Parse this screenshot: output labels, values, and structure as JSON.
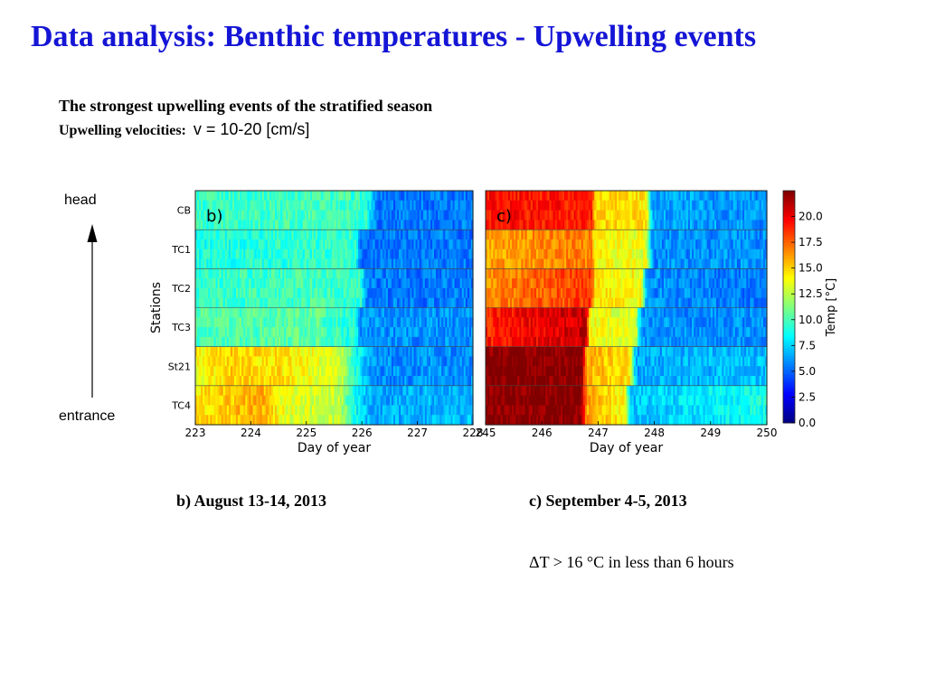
{
  "slide": {
    "title": "Data analysis: Benthic temperatures - Upwelling events",
    "subtitle": "The strongest upwelling events of the stratified season",
    "velocity_label": "Upwelling velocities:",
    "velocity_value": "v = 10-20  [cm/s]",
    "head_label": "head",
    "entrance_label": "entrance",
    "caption_b": "b) August 13-14, 2013",
    "caption_c": "c) September 4-5, 2013",
    "note": "ΔT > 16 °C in less than 6 hours"
  },
  "chart_data": [
    {
      "type": "heatmap",
      "panel_label": "b)",
      "xlabel": "Day of year",
      "ylabel": "Stations",
      "xlim": [
        222.8,
        228
      ],
      "xticks": [
        "223",
        "224",
        "225",
        "226",
        "227",
        "228"
      ],
      "stations": [
        "CB",
        "TC1",
        "TC2",
        "TC3",
        "St21",
        "TC4"
      ],
      "series": [
        {
          "name": "CB",
          "values": [
            [
              222.8,
              9.5
            ],
            [
              224.0,
              9.8
            ],
            [
              225.5,
              10.0
            ],
            [
              226.0,
              9.5
            ],
            [
              226.2,
              5.5
            ],
            [
              228,
              5.5
            ]
          ]
        },
        {
          "name": "TC1",
          "values": [
            [
              222.8,
              9.0
            ],
            [
              225.0,
              9.5
            ],
            [
              225.8,
              9.5
            ],
            [
              225.9,
              5.5
            ],
            [
              228,
              5.5
            ]
          ]
        },
        {
          "name": "TC2",
          "values": [
            [
              222.8,
              9.5
            ],
            [
              225.0,
              10.0
            ],
            [
              225.9,
              9.5
            ],
            [
              226.0,
              5.5
            ],
            [
              228,
              5.5
            ]
          ]
        },
        {
          "name": "TC3",
          "values": [
            [
              222.8,
              10.0
            ],
            [
              225.0,
              10.5
            ],
            [
              225.8,
              9.0
            ],
            [
              225.9,
              6.0
            ],
            [
              228,
              6.0
            ]
          ]
        },
        {
          "name": "St21",
          "values": [
            [
              222.8,
              14.0
            ],
            [
              223.5,
              15.0
            ],
            [
              224.5,
              14.5
            ],
            [
              225.5,
              13.0
            ],
            [
              225.9,
              8.0
            ],
            [
              226.1,
              6.0
            ],
            [
              228,
              6.0
            ]
          ]
        },
        {
          "name": "TC4",
          "values": [
            [
              222.8,
              14.5
            ],
            [
              224.0,
              16.0
            ],
            [
              224.5,
              13.5
            ],
            [
              225.5,
              12.5
            ],
            [
              225.9,
              7.5
            ],
            [
              226.2,
              6.5
            ],
            [
              228,
              7.0
            ]
          ]
        }
      ]
    },
    {
      "type": "heatmap",
      "panel_label": "c)",
      "xlabel": "Day of year",
      "xlim": [
        244.85,
        250
      ],
      "xticks": [
        "245",
        "246",
        "247",
        "248",
        "249",
        "250"
      ],
      "stations": [
        "CB",
        "TC1",
        "TC2",
        "TC3",
        "St21",
        "TC4"
      ],
      "series": [
        {
          "name": "CB",
          "values": [
            [
              244.85,
              19.5
            ],
            [
              246.8,
              19.0
            ],
            [
              246.85,
              15.0
            ],
            [
              247.8,
              14.5
            ],
            [
              247.9,
              6.5
            ],
            [
              250,
              6.0
            ]
          ]
        },
        {
          "name": "TC1",
          "values": [
            [
              244.85,
              16.0
            ],
            [
              246.8,
              17.0
            ],
            [
              246.85,
              14.0
            ],
            [
              247.8,
              13.5
            ],
            [
              247.9,
              6.0
            ],
            [
              250,
              6.0
            ]
          ]
        },
        {
          "name": "TC2",
          "values": [
            [
              244.85,
              16.5
            ],
            [
              246.8,
              18.5
            ],
            [
              246.85,
              14.5
            ],
            [
              247.7,
              14.0
            ],
            [
              247.8,
              6.0
            ],
            [
              250,
              5.5
            ]
          ]
        },
        {
          "name": "TC3",
          "values": [
            [
              244.85,
              19.0
            ],
            [
              246.7,
              21.0
            ],
            [
              246.75,
              14.0
            ],
            [
              247.6,
              13.0
            ],
            [
              247.7,
              6.0
            ],
            [
              250,
              6.0
            ]
          ]
        },
        {
          "name": "St21",
          "values": [
            [
              244.85,
              22.5
            ],
            [
              246.6,
              22.5
            ],
            [
              246.7,
              16.0
            ],
            [
              247.5,
              14.5
            ],
            [
              247.6,
              6.5
            ],
            [
              250,
              7.0
            ]
          ]
        },
        {
          "name": "TC4",
          "values": [
            [
              244.85,
              22.5
            ],
            [
              246.6,
              22.5
            ],
            [
              246.7,
              16.0
            ],
            [
              247.4,
              14.0
            ],
            [
              247.5,
              7.0
            ],
            [
              250,
              9.0
            ]
          ]
        }
      ]
    }
  ],
  "colorbar": {
    "label": "Temp [°C]",
    "range": [
      0,
      22.5
    ],
    "ticks": [
      "0.0",
      "2.5",
      "5.0",
      "7.5",
      "10.0",
      "12.5",
      "15.0",
      "17.5",
      "20.0"
    ],
    "colormap": "jet"
  }
}
